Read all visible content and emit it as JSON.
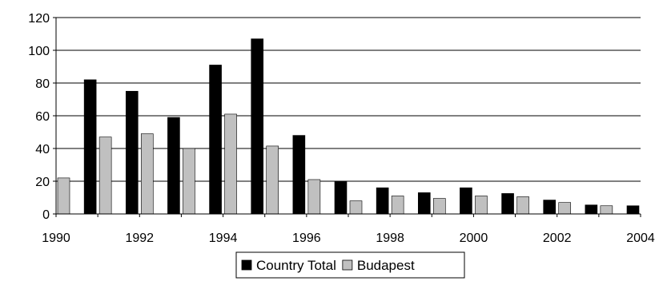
{
  "chart_data": {
    "type": "bar",
    "title": "",
    "xlabel": "",
    "ylabel": "",
    "x": [
      1990,
      1991,
      1992,
      1993,
      1994,
      1995,
      1996,
      1997,
      1998,
      1999,
      2000,
      2001,
      2002,
      2003,
      2004
    ],
    "x_tick_labels": [
      "1990",
      "1992",
      "1994",
      "1996",
      "1998",
      "2000",
      "2002",
      "2004"
    ],
    "y_tick_labels": [
      "0",
      "20",
      "40",
      "60",
      "80",
      "100",
      "120"
    ],
    "ylim": [
      0,
      120
    ],
    "grid": true,
    "legend_position": "bottom",
    "series": [
      {
        "name": "Country Total",
        "color": "#000000",
        "values": [
          null,
          82,
          75,
          59,
          91,
          107,
          48,
          20,
          16,
          13,
          16,
          12.5,
          8.5,
          5.5,
          5
        ]
      },
      {
        "name": "Budapest",
        "color": "#c0c0c0",
        "values": [
          22,
          47,
          49,
          40,
          61,
          41.5,
          21,
          8,
          11,
          9.5,
          11,
          10.5,
          7,
          5,
          null
        ]
      }
    ]
  }
}
